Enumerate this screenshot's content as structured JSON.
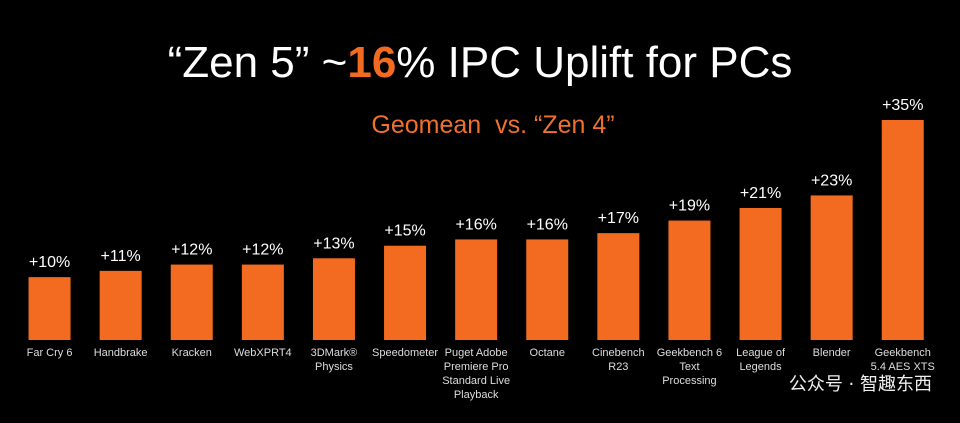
{
  "chart_data": {
    "type": "bar",
    "title_parts": [
      "“Zen 5” ~",
      "16",
      "% IPC Uplift for PCs"
    ],
    "subtitle": "Geomean  vs. “Zen 4”",
    "categories": [
      "Far Cry 6",
      "Handbrake",
      "Kracken",
      "WebXPRT4",
      "3DMark® Physics",
      "Speedometer",
      "Puget Adobe Premiere Pro Standard Live Playback",
      "Octane",
      "Cinebench R23",
      "Geekbench 6 Text Processing",
      "League of Legends",
      "Blender",
      "Geekbench 5.4 AES XTS"
    ],
    "values": [
      10,
      11,
      12,
      12,
      13,
      15,
      16,
      16,
      17,
      19,
      21,
      23,
      35
    ],
    "value_labels": [
      "+10%",
      "+11%",
      "+12%",
      "+12%",
      "+13%",
      "+15%",
      "+16%",
      "+16%",
      "+17%",
      "+19%",
      "+21%",
      "+23%",
      "+35%"
    ],
    "color": "#f26b21",
    "watermark": "公众号 · 智趣东西"
  }
}
